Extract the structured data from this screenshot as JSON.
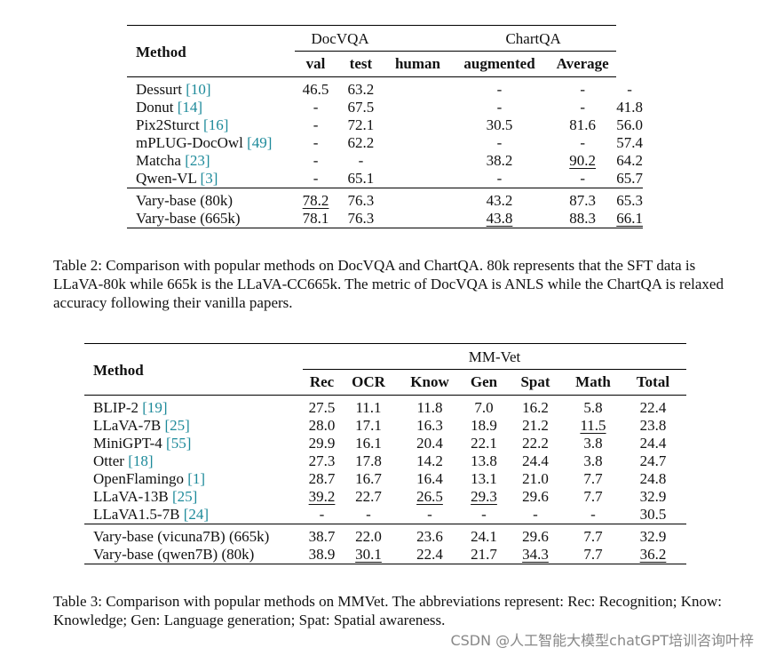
{
  "table2": {
    "method_header": "Method",
    "group_docvqa": "DocVQA",
    "group_chartqa": "ChartQA",
    "sub_headers": [
      "val",
      "test",
      "human",
      "augmented",
      "Average"
    ],
    "rows": [
      {
        "name": "Dessurt",
        "ref": "[10]",
        "cells": [
          "46.5",
          "63.2",
          "-",
          "-",
          "-"
        ]
      },
      {
        "name": "Donut",
        "ref": "[14]",
        "cells": [
          "-",
          "67.5",
          "-",
          "-",
          "41.8"
        ]
      },
      {
        "name": "Pix2Sturct",
        "ref": "[16]",
        "cells": [
          "-",
          "72.1",
          "30.5",
          "81.6",
          "56.0"
        ]
      },
      {
        "name": "mPLUG-DocOwl",
        "ref": "[49]",
        "cells": [
          "-",
          "62.2",
          "-",
          "-",
          "57.4"
        ]
      },
      {
        "name": "Matcha",
        "ref": "[23]",
        "cells": [
          "-",
          "-",
          "38.2",
          "90.2",
          "64.2"
        ]
      },
      {
        "name": "Qwen-VL",
        "ref": "[3]",
        "cells": [
          "-",
          "65.1",
          "-",
          "-",
          "65.7"
        ]
      }
    ],
    "vary_rows": [
      {
        "name": "Vary-base (80k)",
        "cells": [
          "78.2",
          "76.3",
          "43.2",
          "87.3",
          "65.3"
        ]
      },
      {
        "name": "Vary-base (665k)",
        "cells": [
          "78.1",
          "76.3",
          "43.8",
          "88.3",
          "66.1"
        ]
      }
    ],
    "caption": "Table 2: Comparison with popular methods on DocVQA and ChartQA. 80k represents that the SFT data is LLaVA-80k while 665k is the LLaVA-CC665k. The metric of DocVQA is ANLS while the ChartQA is relaxed accuracy following their vanilla papers."
  },
  "table3": {
    "method_header": "Method",
    "group_header": "MM-Vet",
    "sub_headers": [
      "Rec",
      "OCR",
      "Know",
      "Gen",
      "Spat",
      "Math",
      "Total"
    ],
    "rows": [
      {
        "name": "BLIP-2",
        "ref": "[19]",
        "cells": [
          "27.5",
          "11.1",
          "11.8",
          "7.0",
          "16.2",
          "5.8",
          "22.4"
        ]
      },
      {
        "name": "LLaVA-7B",
        "ref": "[25]",
        "cells": [
          "28.0",
          "17.1",
          "16.3",
          "18.9",
          "21.2",
          "11.5",
          "23.8"
        ]
      },
      {
        "name": "MiniGPT-4",
        "ref": "[55]",
        "cells": [
          "29.9",
          "16.1",
          "20.4",
          "22.1",
          "22.2",
          "3.8",
          "24.4"
        ]
      },
      {
        "name": "Otter",
        "ref": "[18]",
        "cells": [
          "27.3",
          "17.8",
          "14.2",
          "13.8",
          "24.4",
          "3.8",
          "24.7"
        ]
      },
      {
        "name": "OpenFlamingo",
        "ref": "[1]",
        "cells": [
          "28.7",
          "16.7",
          "16.4",
          "13.1",
          "21.0",
          "7.7",
          "24.8"
        ]
      },
      {
        "name": "LLaVA-13B",
        "ref": "[25]",
        "cells": [
          "39.2",
          "22.7",
          "26.5",
          "29.3",
          "29.6",
          "7.7",
          "32.9"
        ]
      },
      {
        "name": "LLaVA1.5-7B",
        "ref": "[24]",
        "cells": [
          "-",
          "-",
          "-",
          "-",
          "-",
          "-",
          "30.5"
        ]
      }
    ],
    "vary_rows": [
      {
        "name": "Vary-base (vicuna7B) (665k)",
        "cells": [
          "38.7",
          "22.0",
          "23.6",
          "24.1",
          "29.6",
          "7.7",
          "32.9"
        ]
      },
      {
        "name": "Vary-base (qwen7B) (80k)",
        "cells": [
          "38.9",
          "30.1",
          "22.4",
          "21.7",
          "34.3",
          "7.7",
          "36.2"
        ]
      }
    ],
    "caption": "Table 3: Comparison with popular methods on MMVet. The abbreviations represent: Rec: Recognition; Know: Knowledge; Gen: Language generation; Spat: Spatial awareness."
  },
  "watermark": "CSDN @人工智能大模型chatGPT培训咨询叶梓",
  "colors": {
    "citation": "#1d8a9a"
  }
}
